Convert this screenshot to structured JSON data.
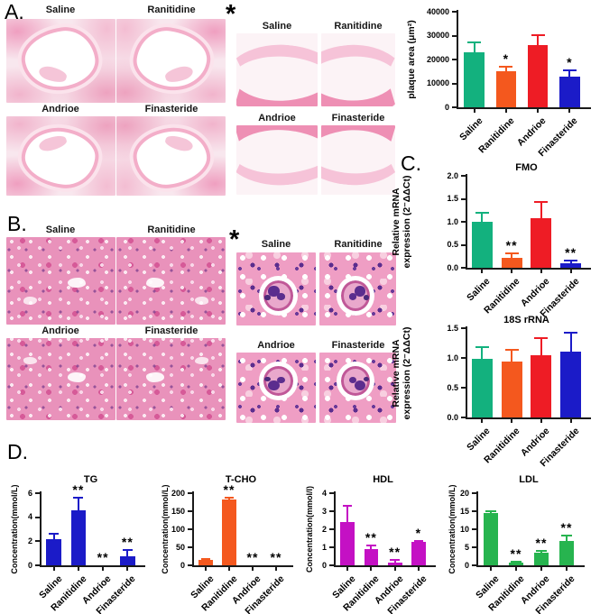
{
  "figure": {
    "panel_a": {
      "label": "A.",
      "asterisk": "*",
      "main_labels": [
        "Saline",
        "Ranitidine",
        "Andrioe",
        "Finasteride"
      ],
      "zoom_labels": [
        "Saline",
        "Ranitidine",
        "Andrioe",
        "Finasteride"
      ]
    },
    "panel_b": {
      "label": "B.",
      "asterisk": "*",
      "main_labels": [
        "Saline",
        "Ranitidine",
        "Andrioe",
        "Finasteride"
      ],
      "zoom_labels": [
        "Saline",
        "Ranitidine",
        "Andrioe",
        "Finasteride"
      ]
    },
    "panel_c": {
      "label": "C."
    },
    "panel_d": {
      "label": "D."
    }
  },
  "colors": {
    "saline_green": "#13b17e",
    "ranitidine_orange": "#f4581e",
    "andrioe_red": "#ee1c25",
    "finasteride_blue": "#1b1bc8",
    "hdl_magenta": "#c411c4",
    "ldl_green": "#27b44f"
  },
  "chart_data": [
    {
      "id": "plaque",
      "type": "bar",
      "title": "",
      "ylabel": "plaque area (μm²)",
      "categories": [
        "Saline",
        "Ranitidine",
        "Andrioe",
        "Finasteride"
      ],
      "values": [
        23000,
        15000,
        26200,
        12800
      ],
      "errors": [
        4000,
        1800,
        4000,
        2800
      ],
      "sig": [
        "",
        "*",
        "",
        "*"
      ],
      "bar_colors": [
        "#13b17e",
        "#f4581e",
        "#ee1c25",
        "#1b1bc8"
      ],
      "ylim": [
        0,
        40000
      ],
      "yticks": [
        0,
        10000,
        20000,
        30000,
        40000
      ],
      "ytick_labels": [
        "0",
        "10000",
        "20000",
        "30000",
        "40000"
      ],
      "grid": false,
      "legend": "none"
    },
    {
      "id": "fmo",
      "type": "bar",
      "title": "FMO",
      "ylabel": "Relative mRNA\nexpression (2⁻ΔΔCt)",
      "categories": [
        "Saline",
        "Ranitidine",
        "Andrioe",
        "Finasteride"
      ],
      "values": [
        1.0,
        0.22,
        1.07,
        0.1
      ],
      "errors": [
        0.2,
        0.1,
        0.36,
        0.05
      ],
      "sig": [
        "",
        "**",
        "",
        "**"
      ],
      "bar_colors": [
        "#13b17e",
        "#f4581e",
        "#ee1c25",
        "#1b1bc8"
      ],
      "ylim": [
        0,
        2.0
      ],
      "yticks": [
        0,
        0.5,
        1.0,
        1.5,
        2.0
      ],
      "ytick_labels": [
        "0.0",
        "0.5",
        "1.0",
        "1.5",
        "2.0"
      ],
      "grid": false,
      "legend": "none"
    },
    {
      "id": "rrna",
      "type": "bar",
      "title": "18S rRNA",
      "ylabel": "Relative mRNA\nexpression (2⁻ΔΔCt)",
      "categories": [
        "Saline",
        "Ranitidine",
        "Andrioe",
        "Finasteride"
      ],
      "values": [
        0.99,
        0.94,
        1.05,
        1.1
      ],
      "errors": [
        0.19,
        0.2,
        0.28,
        0.32
      ],
      "sig": [
        "",
        "",
        "",
        ""
      ],
      "bar_colors": [
        "#13b17e",
        "#f4581e",
        "#ee1c25",
        "#1b1bc8"
      ],
      "ylim": [
        0,
        1.5
      ],
      "yticks": [
        0,
        0.5,
        1.0,
        1.5
      ],
      "ytick_labels": [
        "0.0",
        "0.5",
        "1.0",
        "1.5"
      ],
      "grid": false,
      "legend": "none"
    },
    {
      "id": "tg",
      "type": "bar",
      "title": "TG",
      "ylabel": "Concentration(mmol/L)",
      "categories": [
        "Saline",
        "Ranitidine",
        "Andrioe",
        "Finasteride"
      ],
      "values": [
        2.2,
        4.6,
        0,
        0.75
      ],
      "errors": [
        0.4,
        1.0,
        0,
        0.55
      ],
      "sig": [
        "",
        "**",
        "**",
        "**"
      ],
      "bar_colors": [
        "#1b1bc8",
        "#1b1bc8",
        "#1b1bc8",
        "#1b1bc8"
      ],
      "ylim": [
        0,
        6
      ],
      "yticks": [
        0,
        2,
        4,
        6
      ],
      "ytick_labels": [
        "0",
        "2",
        "4",
        "6"
      ],
      "grid": false,
      "legend": "none"
    },
    {
      "id": "tcho",
      "type": "bar",
      "title": "T-CHO",
      "ylabel": "Concentration(mmol/L)",
      "categories": [
        "Saline",
        "Ranitidine",
        "Andrioe",
        "Finasteride"
      ],
      "values": [
        15,
        182,
        0,
        0
      ],
      "errors": [
        3,
        5,
        0,
        0
      ],
      "sig": [
        "",
        "**",
        "**",
        "**"
      ],
      "bar_colors": [
        "#f4581e",
        "#f4581e",
        "#f4581e",
        "#f4581e"
      ],
      "ylim": [
        0,
        200
      ],
      "yticks": [
        0,
        50,
        100,
        150,
        200
      ],
      "ytick_labels": [
        "0",
        "50",
        "100",
        "150",
        "200"
      ],
      "grid": false,
      "legend": "none"
    },
    {
      "id": "hdl",
      "type": "bar",
      "title": "HDL",
      "ylabel": "Concentration(mmol/l)",
      "categories": [
        "Saline",
        "Ranitidine",
        "Andrioe",
        "Finasteride"
      ],
      "values": [
        2.4,
        0.9,
        0.15,
        1.3
      ],
      "errors": [
        0.9,
        0.2,
        0.15,
        0.07
      ],
      "sig": [
        "",
        "**",
        "**",
        "*"
      ],
      "bar_colors": [
        "#c411c4",
        "#c411c4",
        "#c411c4",
        "#c411c4"
      ],
      "ylim": [
        0,
        4
      ],
      "yticks": [
        0,
        1,
        2,
        3,
        4
      ],
      "ytick_labels": [
        "0",
        "1",
        "2",
        "3",
        "4"
      ],
      "grid": false,
      "legend": "none"
    },
    {
      "id": "ldl",
      "type": "bar",
      "title": "LDL",
      "ylabel": "Concentration(mmol/L)",
      "categories": [
        "Saline",
        "Ranitidine",
        "Andrioe",
        "Finasteride"
      ],
      "values": [
        14.5,
        0.8,
        3.5,
        6.8
      ],
      "errors": [
        0.5,
        0.3,
        0.5,
        1.5
      ],
      "sig": [
        "",
        "**",
        "**",
        "**"
      ],
      "bar_colors": [
        "#27b44f",
        "#27b44f",
        "#27b44f",
        "#27b44f"
      ],
      "ylim": [
        0,
        20
      ],
      "yticks": [
        0,
        5,
        10,
        15,
        20
      ],
      "ytick_labels": [
        "0",
        "5",
        "10",
        "15",
        "20"
      ],
      "grid": false,
      "legend": "none"
    }
  ]
}
